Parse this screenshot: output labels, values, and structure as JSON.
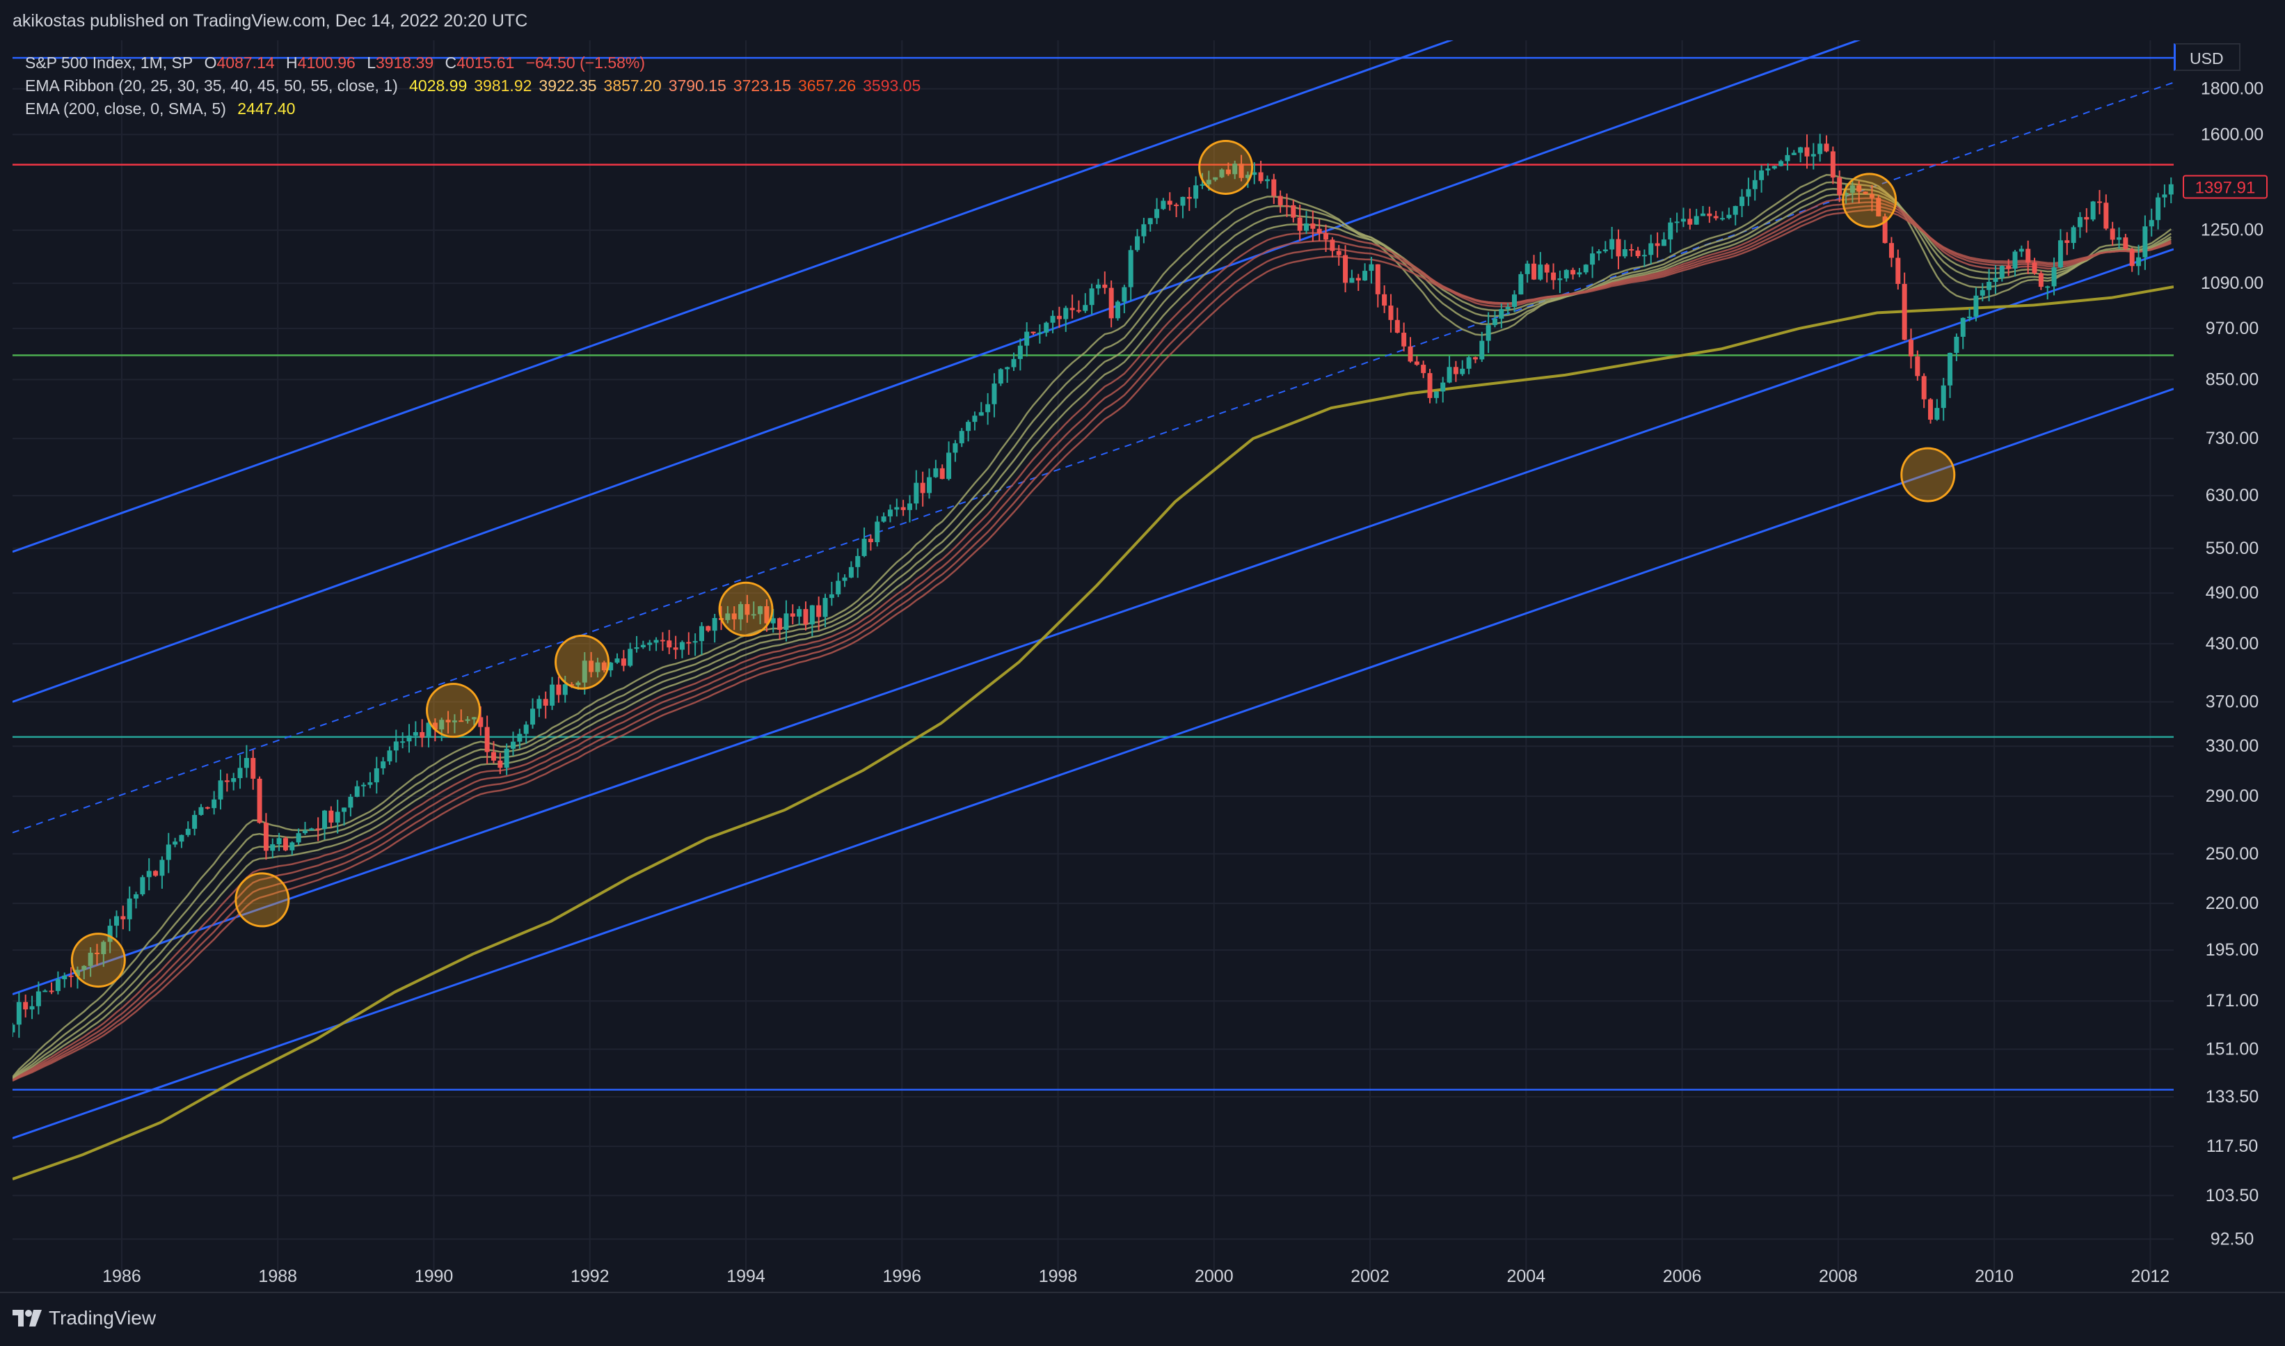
{
  "header": {
    "publisher_line": "akikostas published on TradingView.com, Dec 14, 2022 20:20 UTC"
  },
  "legend": {
    "symbol": "S&P 500 Index, 1M, SP",
    "open_label": "O",
    "open": "4087.14",
    "high_label": "H",
    "high": "4100.96",
    "low_label": "L",
    "low": "3918.39",
    "close_label": "C",
    "close": "4015.61",
    "change": "−64.50 (−1.58%)",
    "ema_ribbon_label": "EMA Ribbon (20, 25, 30, 35, 40, 45, 50, 55, close, 1)",
    "ema_ribbon_values": [
      "4028.99",
      "3981.92",
      "3922.35",
      "3857.20",
      "3790.15",
      "3723.15",
      "3657.26",
      "3593.05"
    ],
    "ema_ribbon_colors": [
      "#ffeb3b",
      "#fdd835",
      "#ffcc80",
      "#ffb74d",
      "#ff8a65",
      "#ff7043",
      "#f4511e",
      "#e53935"
    ],
    "ema200_label": "EMA (200, close, 0, SMA, 5)",
    "ema200_value": "2447.40"
  },
  "currency": "USD",
  "price_tag": "1397.91",
  "footer": {
    "brand": "TradingView"
  },
  "colors": {
    "background": "#131722",
    "grid": "#1f2330",
    "up": "#26a69a",
    "down": "#ef5350",
    "channel": "#2962ff",
    "ema200": "#a39a2a",
    "red_level": "#f23645",
    "green_level": "#4caf50",
    "teal_level": "#26a69a",
    "blue_level": "#2962ff",
    "circle": "#f7a21b"
  },
  "chart_data": {
    "type": "candlestick",
    "scale": "log",
    "title": "S&P 500 Index, 1M, SP",
    "x_ticks": [
      "1986",
      "1988",
      "1990",
      "1992",
      "1994",
      "1996",
      "1998",
      "2000",
      "2002",
      "2004",
      "2006",
      "2008",
      "2010",
      "2012"
    ],
    "x_range": [
      1984.6,
      2012.3
    ],
    "y_ticks": [
      92.5,
      103.5,
      117.5,
      133.5,
      151.0,
      171.0,
      195.0,
      220.0,
      250.0,
      290.0,
      330.0,
      370.0,
      430.0,
      490.0,
      550.0,
      630.0,
      730.0,
      850.0,
      970.0,
      1090.0,
      1250.0,
      1600.0,
      1800.0
    ],
    "y_tick_labels": [
      "92.50",
      "103.50",
      "117.50",
      "133.50",
      "151.00",
      "171.00",
      "195.00",
      "220.00",
      "250.00",
      "290.00",
      "330.00",
      "370.00",
      "430.00",
      "490.00",
      "550.00",
      "630.00",
      "730.00",
      "850.00",
      "970.00",
      "1090.00",
      "1250.00",
      "1600.00",
      "1800.00"
    ],
    "price_path": [
      [
        1984.6,
        165
      ],
      [
        1985.0,
        175
      ],
      [
        1985.5,
        185
      ],
      [
        1986.0,
        215
      ],
      [
        1986.5,
        245
      ],
      [
        1987.0,
        275
      ],
      [
        1987.3,
        300
      ],
      [
        1987.65,
        325
      ],
      [
        1987.8,
        250
      ],
      [
        1988.0,
        255
      ],
      [
        1988.5,
        270
      ],
      [
        1989.0,
        290
      ],
      [
        1989.5,
        335
      ],
      [
        1990.0,
        345
      ],
      [
        1990.5,
        355
      ],
      [
        1990.8,
        310
      ],
      [
        1991.0,
        335
      ],
      [
        1991.5,
        380
      ],
      [
        1992.0,
        405
      ],
      [
        1992.5,
        415
      ],
      [
        1993.0,
        430
      ],
      [
        1993.5,
        450
      ],
      [
        1994.0,
        470
      ],
      [
        1994.5,
        455
      ],
      [
        1995.0,
        470
      ],
      [
        1995.5,
        560
      ],
      [
        1996.0,
        620
      ],
      [
        1996.5,
        670
      ],
      [
        1997.0,
        780
      ],
      [
        1997.5,
        930
      ],
      [
        1998.0,
        1000
      ],
      [
        1998.6,
        1070
      ],
      [
        1998.7,
        960
      ],
      [
        1999.0,
        1250
      ],
      [
        1999.5,
        1350
      ],
      [
        2000.0,
        1430
      ],
      [
        2000.3,
        1470
      ],
      [
        2000.6,
        1440
      ],
      [
        2001.0,
        1300
      ],
      [
        2001.5,
        1180
      ],
      [
        2001.8,
        1080
      ],
      [
        2002.0,
        1130
      ],
      [
        2002.5,
        920
      ],
      [
        2002.75,
        820
      ],
      [
        2003.0,
        870
      ],
      [
        2003.3,
        880
      ],
      [
        2003.6,
        1000
      ],
      [
        2004.0,
        1120
      ],
      [
        2004.5,
        1120
      ],
      [
        2005.0,
        1190
      ],
      [
        2005.5,
        1200
      ],
      [
        2006.0,
        1270
      ],
      [
        2006.5,
        1280
      ],
      [
        2007.0,
        1440
      ],
      [
        2007.5,
        1510
      ],
      [
        2007.8,
        1530
      ],
      [
        2008.0,
        1400
      ],
      [
        2008.4,
        1350
      ],
      [
        2008.7,
        1170
      ],
      [
        2008.9,
        900
      ],
      [
        2009.05,
        830
      ],
      [
        2009.2,
        750
      ],
      [
        2009.5,
        940
      ],
      [
        2009.8,
        1060
      ],
      [
        2010.0,
        1120
      ],
      [
        2010.4,
        1180
      ],
      [
        2010.6,
        1060
      ],
      [
        2011.0,
        1280
      ],
      [
        2011.3,
        1340
      ],
      [
        2011.6,
        1200
      ],
      [
        2011.8,
        1150
      ],
      [
        2012.0,
        1310
      ],
      [
        2012.3,
        1400
      ]
    ],
    "ema200_path": [
      [
        1984.6,
        108
      ],
      [
        1985.5,
        115
      ],
      [
        1986.5,
        125
      ],
      [
        1987.5,
        140
      ],
      [
        1988.5,
        155
      ],
      [
        1989.5,
        175
      ],
      [
        1990.5,
        193
      ],
      [
        1991.5,
        210
      ],
      [
        1992.5,
        235
      ],
      [
        1993.5,
        260
      ],
      [
        1994.5,
        280
      ],
      [
        1995.5,
        310
      ],
      [
        1996.5,
        350
      ],
      [
        1997.5,
        410
      ],
      [
        1998.5,
        500
      ],
      [
        1999.5,
        620
      ],
      [
        2000.5,
        730
      ],
      [
        2001.5,
        790
      ],
      [
        2002.5,
        820
      ],
      [
        2003.5,
        840
      ],
      [
        2004.5,
        860
      ],
      [
        2005.5,
        890
      ],
      [
        2006.5,
        920
      ],
      [
        2007.5,
        970
      ],
      [
        2008.5,
        1010
      ],
      [
        2009.5,
        1020
      ],
      [
        2010.5,
        1030
      ],
      [
        2011.5,
        1050
      ],
      [
        2012.3,
        1080
      ]
    ],
    "horizontal_levels": [
      {
        "value": 1950,
        "color": "blue"
      },
      {
        "value": 1480,
        "color": "red"
      },
      {
        "value": 905,
        "color": "green"
      },
      {
        "value": 338,
        "color": "teal"
      },
      {
        "value": 136,
        "color": "blue"
      }
    ],
    "channel_lines": [
      {
        "from": [
          1984.6,
          545
        ],
        "to": [
          2005.3,
          2400
        ]
      },
      {
        "from": [
          1984.6,
          370
        ],
        "to": [
          2010.5,
          2400
        ]
      },
      {
        "from": [
          1984.6,
          264
        ],
        "to": [
          2012.3,
          1830
        ],
        "dashed": true
      },
      {
        "from": [
          1984.6,
          174
        ],
        "to": [
          2012.3,
          1190
        ]
      },
      {
        "from": [
          1984.6,
          120
        ],
        "to": [
          2012.3,
          830
        ]
      }
    ],
    "circled_touches": [
      [
        1985.7,
        190
      ],
      [
        1987.8,
        222
      ],
      [
        1990.25,
        362
      ],
      [
        1991.9,
        410
      ],
      [
        1994.0,
        470
      ],
      [
        2000.15,
        1470
      ],
      [
        2008.4,
        1350
      ],
      [
        2009.15,
        665
      ]
    ]
  }
}
